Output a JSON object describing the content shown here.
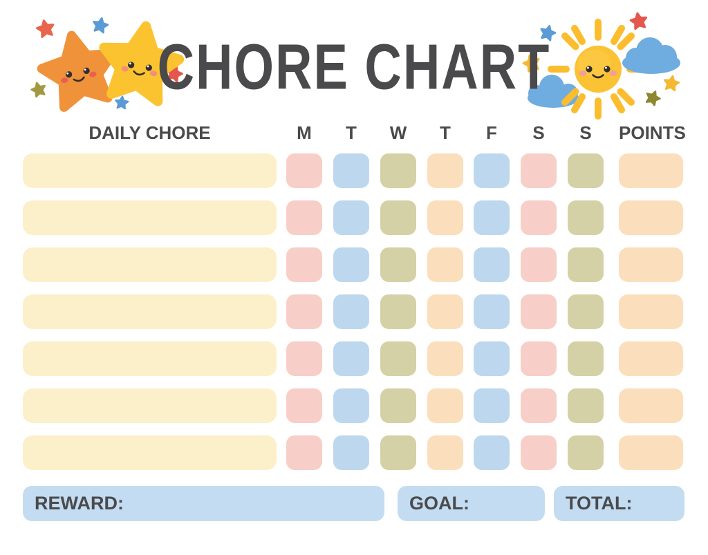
{
  "header": {
    "title": "CHORE CHART",
    "left_illustration": "stars-icon",
    "right_illustration": "sun-clouds-icon"
  },
  "table": {
    "chore_column_header": "DAILY CHORE",
    "day_headers": [
      "M",
      "T",
      "W",
      "T",
      "F",
      "S",
      "S"
    ],
    "points_header": "POINTS",
    "rows": 7,
    "colors": {
      "chore_bar": "#FCF0CA",
      "day_cells": [
        "#F8CFC8",
        "#BDD8EE",
        "#D5D1A6",
        "#FBDFBC",
        "#BDD8EE",
        "#F8CFC8",
        "#D5D1A6"
      ],
      "points_cell": "#FBDFBC"
    }
  },
  "footer": {
    "reward_label": "REWARD:",
    "goal_label": "GOAL:",
    "total_label": "TOTAL:",
    "bar_color": "#C3DCF1"
  },
  "colors": {
    "text": "#4A4A4C",
    "background": "#FFFFFF",
    "star_orange": "#F09239",
    "star_yellow": "#FBC32F",
    "sun_yellow": "#FBC233",
    "cloud_blue": "#6FACDF",
    "mini_star_red": "#E4574D",
    "mini_star_blue": "#5B9BD5",
    "mini_star_olive": "#97903B"
  }
}
